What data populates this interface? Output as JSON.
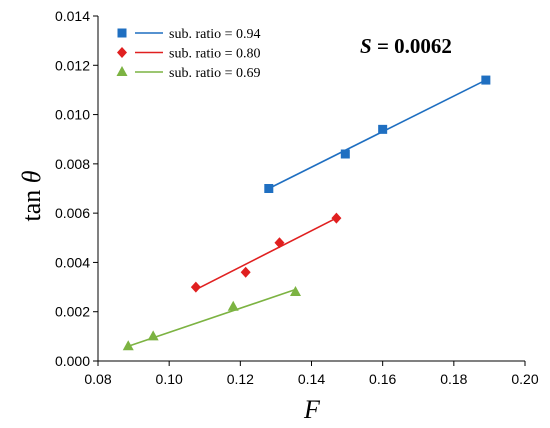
{
  "chart_data": {
    "type": "scatter",
    "title": "",
    "xlabel": "F",
    "ylabel_prefix": "tan ",
    "ylabel_symbol": "θ",
    "xlim": [
      0.08,
      0.2
    ],
    "ylim": [
      0.0,
      0.014
    ],
    "x_ticks": [
      "0.08",
      "0.10",
      "0.12",
      "0.14",
      "0.16",
      "0.18",
      "0.20"
    ],
    "y_ticks": [
      "0.000",
      "0.002",
      "0.004",
      "0.006",
      "0.008",
      "0.010",
      "0.012",
      "0.014"
    ],
    "grid": false,
    "legend_position": "top-left",
    "annotation": {
      "symbol": "S",
      "text": " = 0.0062"
    },
    "series": [
      {
        "name": "sub. ratio = 0.94",
        "color": "#1f6fc1",
        "marker": "square",
        "points": [
          [
            0.128,
            0.007
          ],
          [
            0.1495,
            0.0084
          ],
          [
            0.16,
            0.0094
          ],
          [
            0.189,
            0.0114
          ]
        ],
        "fit": [
          [
            0.128,
            0.007
          ],
          [
            0.189,
            0.0114
          ]
        ]
      },
      {
        "name": "sub. ratio = 0.80",
        "color": "#e02020",
        "marker": "diamond",
        "points": [
          [
            0.1075,
            0.003
          ],
          [
            0.1215,
            0.0036
          ],
          [
            0.131,
            0.0048
          ],
          [
            0.147,
            0.0058
          ]
        ],
        "fit": [
          [
            0.1075,
            0.0029
          ],
          [
            0.147,
            0.0058
          ]
        ]
      },
      {
        "name": "sub. ratio = 0.69",
        "color": "#7cb342",
        "marker": "triangle",
        "points": [
          [
            0.0885,
            0.0006
          ],
          [
            0.0955,
            0.001
          ],
          [
            0.118,
            0.0022
          ],
          [
            0.1355,
            0.0028
          ]
        ],
        "fit": [
          [
            0.0885,
            0.0006
          ],
          [
            0.1355,
            0.0029
          ]
        ]
      }
    ]
  }
}
